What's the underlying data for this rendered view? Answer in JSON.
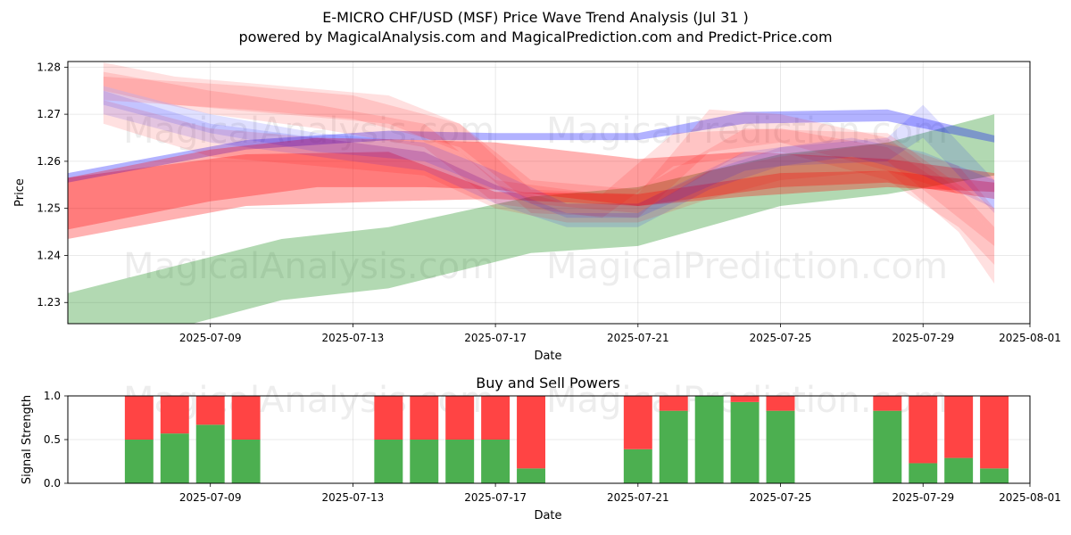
{
  "title": "E-MICRO CHF/USD (MSF) Price Wave Trend Analysis (Jul 31 )",
  "subtitle": "powered by MagicalAnalysis.com and MagicalPrediction.com and Predict-Price.com",
  "watermarks": [
    "MagicalAnalysis.com",
    "MagicalPrediction.com"
  ],
  "colors": {
    "red": "#ff0000",
    "blue": "#0000ff",
    "green": "#008000",
    "buy": "#4caf50",
    "sell": "#ff4444"
  },
  "chart_data": [
    {
      "type": "area",
      "title": "",
      "xlabel": "Date",
      "ylabel": "Price",
      "xlim": [
        "2025-07-05",
        "2025-08-01"
      ],
      "ylim": [
        1.2255,
        1.2812
      ],
      "x_ticks": [
        "2025-07-09",
        "2025-07-13",
        "2025-07-17",
        "2025-07-21",
        "2025-07-25",
        "2025-07-29",
        "2025-08-01"
      ],
      "y_ticks": [
        1.23,
        1.24,
        1.25,
        1.26,
        1.27,
        1.28
      ],
      "grid": true,
      "bands": [
        {
          "color": "green",
          "x": [
            "2025-07-05",
            "2025-07-11",
            "2025-07-14",
            "2025-07-18",
            "2025-07-21",
            "2025-07-25",
            "2025-07-28",
            "2025-07-31"
          ],
          "upper": [
            1.232,
            1.2435,
            1.246,
            1.2525,
            1.2545,
            1.2615,
            1.264,
            1.27
          ],
          "lower": [
            1.2185,
            1.2305,
            1.233,
            1.2405,
            1.242,
            1.2505,
            1.253,
            1.257
          ]
        },
        {
          "color": "red",
          "x": [
            "2025-07-05",
            "2025-07-10",
            "2025-07-14",
            "2025-07-17",
            "2025-07-21",
            "2025-07-25",
            "2025-07-28",
            "2025-07-31"
          ],
          "upper": [
            1.2565,
            1.2615,
            1.262,
            1.2535,
            1.253,
            1.2575,
            1.258,
            1.2555
          ],
          "lower": [
            1.2435,
            1.2505,
            1.2515,
            1.252,
            1.2505,
            1.2545,
            1.2555,
            1.252
          ]
        },
        {
          "color": "blue",
          "x": [
            "2025-07-05",
            "2025-07-10",
            "2025-07-14",
            "2025-07-17",
            "2025-07-21",
            "2025-07-24",
            "2025-07-28",
            "2025-07-31"
          ],
          "upper": [
            1.2575,
            1.2645,
            1.2665,
            1.266,
            1.266,
            1.2705,
            1.271,
            1.2655
          ],
          "lower": [
            1.2555,
            1.2625,
            1.2645,
            1.2645,
            1.2645,
            1.268,
            1.2685,
            1.264
          ]
        },
        {
          "color": "red",
          "x": [
            "2025-07-05",
            "2025-07-09",
            "2025-07-12",
            "2025-07-15",
            "2025-07-17",
            "2025-07-21",
            "2025-07-24",
            "2025-07-28",
            "2025-07-31"
          ],
          "upper": [
            1.2565,
            1.2625,
            1.265,
            1.2645,
            1.264,
            1.2605,
            1.262,
            1.2605,
            1.2575
          ],
          "lower": [
            1.2455,
            1.2515,
            1.2545,
            1.2545,
            1.254,
            1.2505,
            1.2525,
            1.2545,
            1.2535
          ]
        },
        {
          "color": "red",
          "x": [
            "2025-07-06",
            "2025-07-08",
            "2025-07-11",
            "2025-07-14",
            "2025-07-16",
            "2025-07-18",
            "2025-07-21",
            "2025-07-23",
            "2025-07-25",
            "2025-07-28",
            "2025-07-30",
            "2025-07-31"
          ],
          "upper": [
            1.281,
            1.278,
            1.276,
            1.274,
            1.268,
            1.254,
            1.253,
            1.271,
            1.27,
            1.265,
            1.254,
            1.246
          ],
          "lower": [
            1.276,
            1.272,
            1.27,
            1.268,
            1.262,
            1.249,
            1.248,
            1.262,
            1.264,
            1.258,
            1.245,
            1.234
          ]
        },
        {
          "color": "red",
          "x": [
            "2025-07-06",
            "2025-07-09",
            "2025-07-12",
            "2025-07-15",
            "2025-07-17",
            "2025-07-20",
            "2025-07-22",
            "2025-07-25",
            "2025-07-28",
            "2025-07-30",
            "2025-07-31"
          ],
          "upper": [
            1.279,
            1.275,
            1.272,
            1.268,
            1.256,
            1.253,
            1.266,
            1.267,
            1.263,
            1.253,
            1.244
          ],
          "lower": [
            1.275,
            1.27,
            1.267,
            1.263,
            1.251,
            1.248,
            1.259,
            1.262,
            1.256,
            1.246,
            1.238
          ]
        },
        {
          "color": "blue",
          "x": [
            "2025-07-06",
            "2025-07-09",
            "2025-07-12",
            "2025-07-15",
            "2025-07-17",
            "2025-07-19",
            "2025-07-21",
            "2025-07-23",
            "2025-07-25",
            "2025-07-28",
            "2025-07-29",
            "2025-07-31"
          ],
          "upper": [
            1.275,
            1.268,
            1.265,
            1.262,
            1.255,
            1.249,
            1.249,
            1.258,
            1.263,
            1.265,
            1.272,
            1.256
          ],
          "lower": [
            1.27,
            1.264,
            1.261,
            1.258,
            1.251,
            1.246,
            1.246,
            1.254,
            1.259,
            1.26,
            1.265,
            1.249
          ]
        },
        {
          "color": "red",
          "x": [
            "2025-07-06",
            "2025-07-09",
            "2025-07-12",
            "2025-07-15",
            "2025-07-17",
            "2025-07-19",
            "2025-07-21",
            "2025-07-23",
            "2025-07-25",
            "2025-07-28",
            "2025-07-30",
            "2025-07-31"
          ],
          "upper": [
            1.273,
            1.267,
            1.265,
            1.262,
            1.255,
            1.251,
            1.251,
            1.258,
            1.261,
            1.264,
            1.259,
            1.25
          ],
          "lower": [
            1.268,
            1.261,
            1.259,
            1.257,
            1.25,
            1.247,
            1.247,
            1.252,
            1.256,
            1.258,
            1.253,
            1.244
          ]
        },
        {
          "color": "blue",
          "x": [
            "2025-07-06",
            "2025-07-09",
            "2025-07-12",
            "2025-07-15",
            "2025-07-17",
            "2025-07-19",
            "2025-07-21",
            "2025-07-24",
            "2025-07-27",
            "2025-07-29",
            "2025-07-31"
          ],
          "upper": [
            1.276,
            1.27,
            1.266,
            1.264,
            1.258,
            1.251,
            1.251,
            1.262,
            1.265,
            1.262,
            1.256
          ],
          "lower": [
            1.272,
            1.266,
            1.262,
            1.26,
            1.254,
            1.248,
            1.248,
            1.258,
            1.261,
            1.257,
            1.25
          ]
        },
        {
          "color": "red",
          "x": [
            "2025-07-06",
            "2025-07-10",
            "2025-07-13",
            "2025-07-16",
            "2025-07-18",
            "2025-07-21",
            "2025-07-24",
            "2025-07-28",
            "2025-07-30",
            "2025-07-31"
          ],
          "upper": [
            1.278,
            1.276,
            1.274,
            1.268,
            1.256,
            1.254,
            1.267,
            1.266,
            1.255,
            1.25
          ],
          "lower": [
            1.273,
            1.271,
            1.269,
            1.263,
            1.251,
            1.249,
            1.262,
            1.26,
            1.248,
            1.242
          ]
        }
      ]
    },
    {
      "type": "bar",
      "stacked": true,
      "title": "Buy and Sell Powers",
      "xlabel": "Date",
      "ylabel": "Signal Strength",
      "xlim": [
        "2025-07-05",
        "2025-08-01"
      ],
      "ylim": [
        0,
        1
      ],
      "x_ticks": [
        "2025-07-09",
        "2025-07-13",
        "2025-07-17",
        "2025-07-21",
        "2025-07-25",
        "2025-07-29",
        "2025-08-01"
      ],
      "y_ticks": [
        "0.0",
        "0.5",
        "1.0"
      ],
      "grid": true,
      "x": [
        "2025-07-07",
        "2025-07-08",
        "2025-07-09",
        "2025-07-10",
        "2025-07-14",
        "2025-07-15",
        "2025-07-16",
        "2025-07-17",
        "2025-07-18",
        "2025-07-21",
        "2025-07-22",
        "2025-07-23",
        "2025-07-24",
        "2025-07-25",
        "2025-07-28",
        "2025-07-29",
        "2025-07-30",
        "2025-07-31"
      ],
      "series": [
        {
          "name": "Buy",
          "values": [
            0.5,
            0.57,
            0.67,
            0.5,
            0.5,
            0.5,
            0.5,
            0.5,
            0.17,
            0.39,
            0.83,
            1.0,
            0.93,
            0.83,
            0.83,
            0.23,
            0.29,
            0.17
          ]
        },
        {
          "name": "Sell",
          "values": [
            0.5,
            0.43,
            0.33,
            0.5,
            0.5,
            0.5,
            0.5,
            0.5,
            0.83,
            0.61,
            0.17,
            0.0,
            0.07,
            0.17,
            0.17,
            0.77,
            0.71,
            0.83
          ]
        }
      ]
    }
  ]
}
